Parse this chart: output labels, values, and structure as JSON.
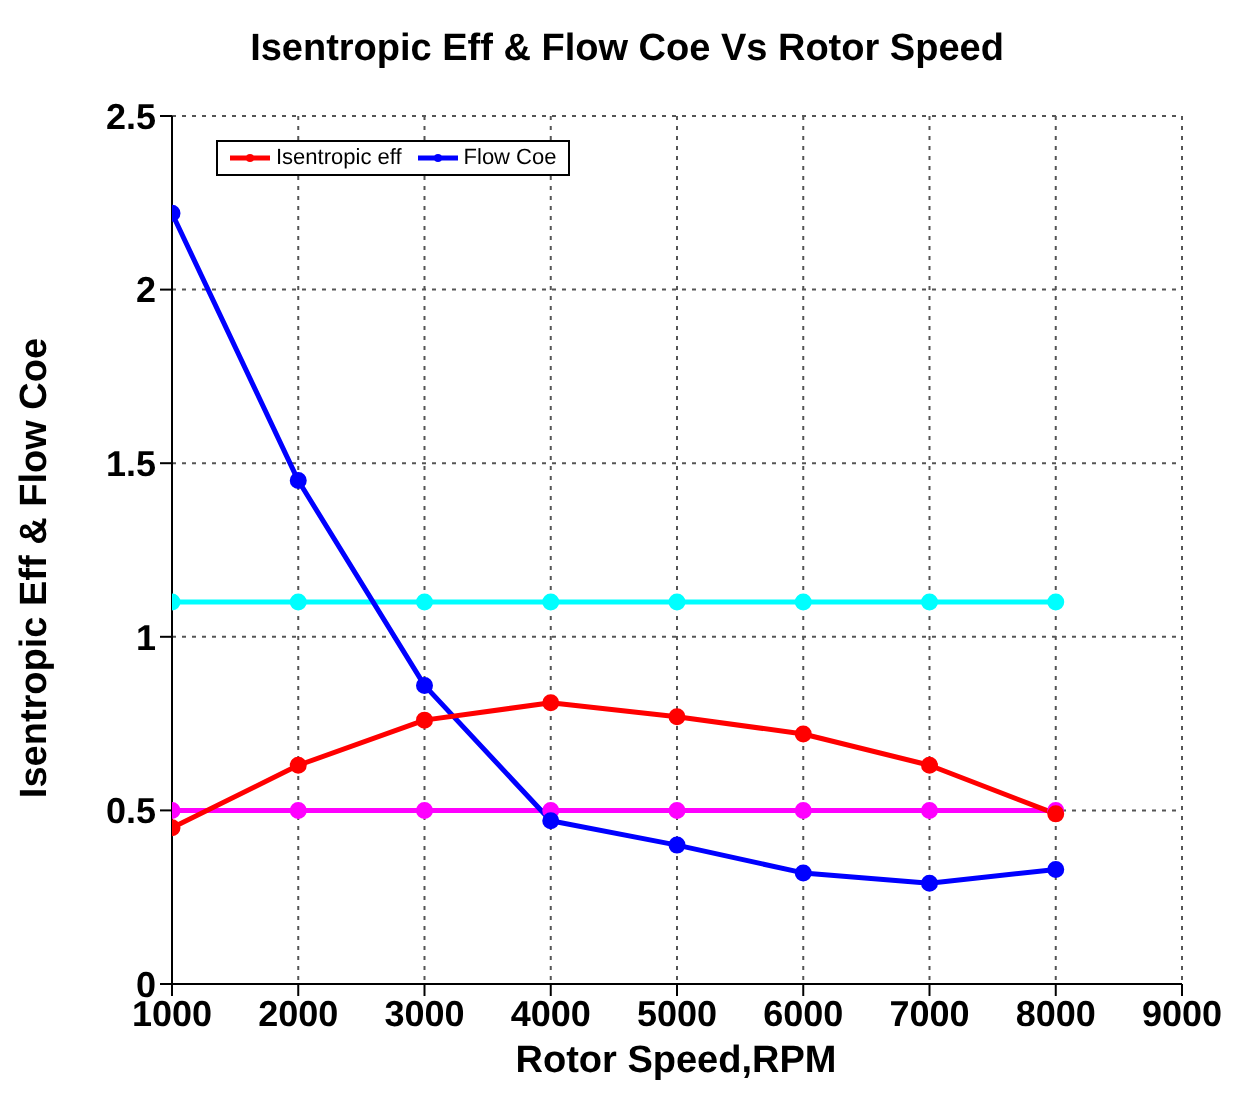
{
  "chart_data": {
    "type": "line",
    "title": "Isentropic Eff & Flow Coe Vs Rotor Speed",
    "xlabel": "Rotor Speed,RPM",
    "ylabel": "Isentropic Eff & Flow Coe",
    "x": [
      1000,
      2000,
      3000,
      4000,
      5000,
      6000,
      7000,
      8000
    ],
    "series": [
      {
        "name": "Isentropic eff",
        "color": "#ff0000",
        "values": [
          0.45,
          0.63,
          0.76,
          0.81,
          0.77,
          0.72,
          0.63,
          0.49
        ]
      },
      {
        "name": "Flow Coe",
        "color": "#0000ff",
        "values": [
          2.22,
          1.45,
          0.86,
          0.47,
          0.4,
          0.32,
          0.29,
          0.33
        ]
      },
      {
        "color": "#00ffff",
        "values": [
          1.1,
          1.1,
          1.1,
          1.1,
          1.1,
          1.1,
          1.1,
          1.1
        ]
      },
      {
        "color": "#ff00ff",
        "values": [
          0.5,
          0.5,
          0.5,
          0.5,
          0.5,
          0.5,
          0.5,
          0.5
        ]
      }
    ],
    "xlim": [
      1000,
      9000
    ],
    "xticks": [
      1000,
      2000,
      3000,
      4000,
      5000,
      6000,
      7000,
      8000,
      9000
    ],
    "ylim": [
      0,
      2.5
    ],
    "yticks": [
      0,
      0.5,
      1,
      1.5,
      2,
      2.5
    ],
    "grid": true,
    "legend": "top left",
    "marker": "circle",
    "line_style": "solid"
  }
}
